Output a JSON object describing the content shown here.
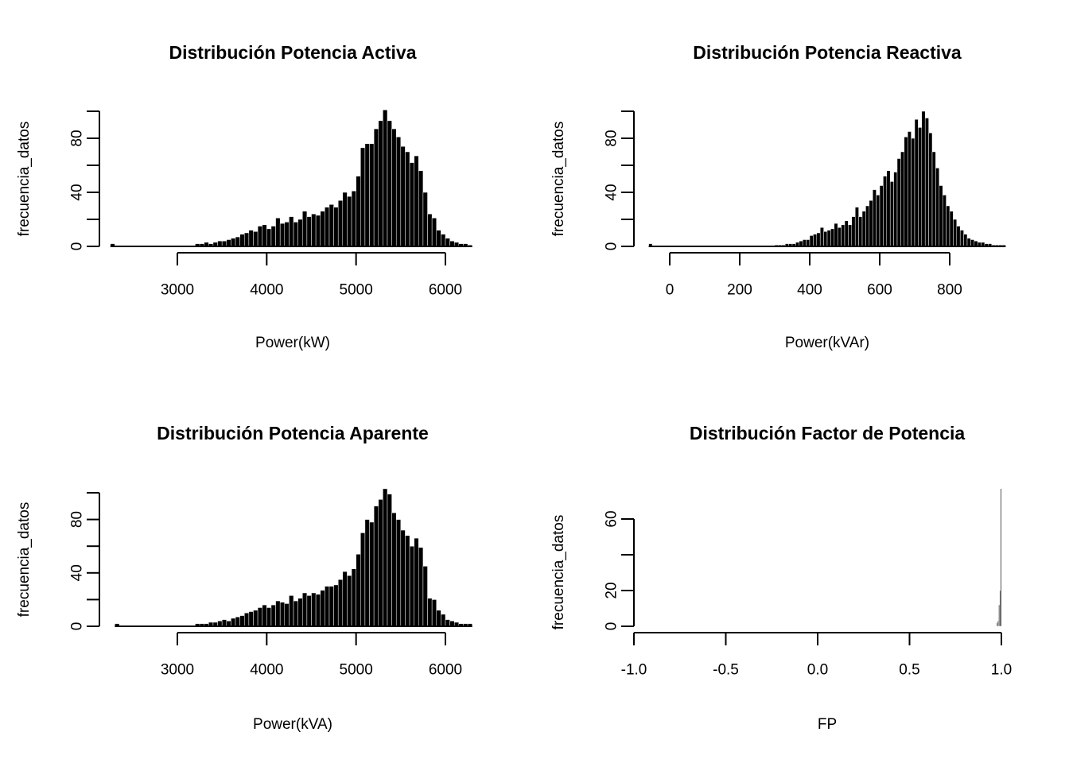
{
  "page": {
    "background": "#ffffff",
    "foreground": "#000000",
    "layout": "2x2 histogram grid"
  },
  "chart_data": [
    {
      "type": "histogram",
      "title": "Distribución Potencia Activa",
      "xlabel": "Power(kW)",
      "ylabel": "frecuencia_datos",
      "bar_color": "#000000",
      "xlim": [
        2250,
        6300
      ],
      "ylim": [
        0,
        100
      ],
      "x_ticks": [
        3000,
        4000,
        5000,
        6000
      ],
      "x_tick_labels": [
        "3000",
        "4000",
        "5000",
        "6000"
      ],
      "y_ticks": [
        0,
        20,
        40,
        60,
        80,
        100
      ],
      "y_tick_labels": [
        "0",
        "",
        "40",
        "",
        "80",
        ""
      ],
      "bin_start": 2250,
      "bin_width": 50,
      "baseline_line": [
        2250,
        6300
      ],
      "heights": [
        2,
        0,
        0,
        0,
        0,
        0,
        0,
        0,
        0,
        0,
        0,
        0,
        0,
        0,
        0,
        0,
        0,
        0,
        0,
        2,
        2,
        3,
        2,
        3,
        4,
        4,
        5,
        6,
        7,
        9,
        10,
        12,
        11,
        15,
        16,
        13,
        15,
        21,
        17,
        18,
        22,
        18,
        20,
        26,
        22,
        24,
        23,
        26,
        29,
        31,
        29,
        34,
        40,
        37,
        41,
        52,
        73,
        76,
        76,
        87,
        93,
        101,
        93,
        87,
        81,
        74,
        70,
        62,
        67,
        56,
        40,
        24,
        21,
        12,
        9,
        6,
        4,
        3,
        2,
        2,
        1
      ]
    },
    {
      "type": "histogram",
      "title": "Distribución Potencia Reactiva",
      "xlabel": "Power(kVAr)",
      "ylabel": "frecuencia_datos",
      "bar_color": "#000000",
      "xlim": [
        -60,
        960
      ],
      "ylim": [
        0,
        100
      ],
      "x_ticks": [
        0,
        200,
        400,
        600,
        800
      ],
      "x_tick_labels": [
        "0",
        "200",
        "400",
        "600",
        "800"
      ],
      "y_ticks": [
        0,
        20,
        40,
        60,
        80,
        100
      ],
      "y_tick_labels": [
        "0",
        "",
        "40",
        "",
        "80",
        ""
      ],
      "bin_start": -60,
      "bin_width": 10,
      "baseline_line": [
        -60,
        960
      ],
      "heights": [
        2,
        0,
        0,
        0,
        0,
        0,
        0,
        0,
        0,
        0,
        0,
        0,
        0,
        0,
        0,
        0,
        0,
        0,
        0,
        0,
        0,
        0,
        0,
        0,
        0,
        0,
        0,
        0,
        0,
        0,
        0,
        0,
        0,
        0,
        0,
        0,
        1,
        1,
        1,
        2,
        2,
        2,
        3,
        4,
        5,
        5,
        8,
        9,
        10,
        14,
        11,
        12,
        13,
        17,
        14,
        16,
        19,
        16,
        22,
        29,
        22,
        26,
        30,
        34,
        42,
        38,
        45,
        52,
        56,
        48,
        55,
        65,
        70,
        81,
        85,
        80,
        94,
        88,
        100,
        95,
        84,
        70,
        58,
        45,
        38,
        30,
        26,
        20,
        15,
        12,
        9,
        6,
        5,
        4,
        3,
        3,
        2,
        2,
        1,
        1,
        1,
        1
      ]
    },
    {
      "type": "histogram",
      "title": "Distribución Potencia Aparente",
      "xlabel": "Power(kVA)",
      "ylabel": "frecuencia_datos",
      "bar_color": "#000000",
      "xlim": [
        2250,
        6300
      ],
      "ylim": [
        0,
        100
      ],
      "x_ticks": [
        3000,
        4000,
        5000,
        6000
      ],
      "x_tick_labels": [
        "3000",
        "4000",
        "5000",
        "6000"
      ],
      "y_ticks": [
        0,
        20,
        40,
        60,
        80,
        100
      ],
      "y_tick_labels": [
        "0",
        "",
        "40",
        "",
        "80",
        ""
      ],
      "bin_start": 2250,
      "bin_width": 50,
      "baseline_line": [
        2300,
        6300
      ],
      "heights": [
        0,
        2,
        0,
        0,
        0,
        0,
        0,
        0,
        0,
        0,
        0,
        0,
        0,
        0,
        0,
        0,
        0,
        0,
        0,
        2,
        2,
        2,
        3,
        3,
        4,
        5,
        4,
        6,
        7,
        8,
        10,
        11,
        12,
        14,
        16,
        14,
        16,
        19,
        18,
        17,
        23,
        19,
        21,
        25,
        23,
        25,
        24,
        27,
        30,
        30,
        31,
        35,
        41,
        38,
        43,
        54,
        70,
        80,
        78,
        90,
        95,
        103,
        99,
        85,
        80,
        72,
        68,
        60,
        66,
        59,
        45,
        21,
        20,
        12,
        9,
        5,
        4,
        3,
        2,
        2,
        2
      ]
    },
    {
      "type": "histogram",
      "title": "Distribución Factor de Potencia",
      "xlabel": "FP",
      "ylabel": "frecuencia_datos",
      "bar_color": "#000000",
      "xlim": [
        -1.0,
        1.0
      ],
      "ylim": [
        0,
        60
      ],
      "x_ticks": [
        -1,
        -0.5,
        0,
        0.5,
        1
      ],
      "x_tick_labels": [
        "-1.0",
        "-0.5",
        "0.0",
        "0.5",
        "1.0"
      ],
      "y_ticks": [
        0,
        20,
        40,
        60
      ],
      "y_tick_labels": [
        "0",
        "20",
        "",
        "60"
      ],
      "bin_start": 0.975,
      "bin_width": 0.005,
      "baseline_line": null,
      "heights": [
        2,
        3,
        12,
        20,
        77
      ]
    }
  ]
}
